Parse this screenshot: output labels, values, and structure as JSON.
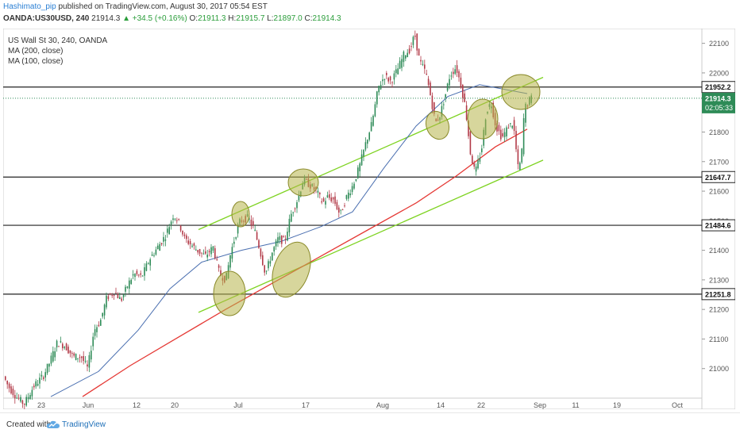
{
  "header": {
    "author": "Hashimato_pip",
    "published": "published on TradingView.com, August 30, 2017 05:54 EST",
    "symbol": "OANDA:US30USD, 240",
    "last": "21914.3",
    "change": "+34.5 (+0.16%)",
    "o_label": "O:",
    "o": "21911.3",
    "h_label": "H:",
    "h": "21915.7",
    "l_label": "L:",
    "l": "21897.0",
    "c_label": "C:",
    "c": "21914.3"
  },
  "legend": {
    "title": "US Wall St 30, 240, OANDA",
    "ma200": "MA (200, close)",
    "ma100": "MA (100, close)"
  },
  "colors": {
    "up": "#2e8b57",
    "down": "#b23a48",
    "ma200": "#e53935",
    "ma100": "#4a6fb0",
    "channel": "#7ed321",
    "ellipse_fill": "#b7b44a",
    "ellipse_stroke": "#8a8a2a",
    "current_badge": "#2e8b57"
  },
  "footer": {
    "created": "Created with",
    "brand": "TradingView"
  },
  "chart_data": {
    "type": "candlestick",
    "title": "US Wall St 30, 240, OANDA",
    "xlabel": "",
    "ylabel": "",
    "ylim": [
      20900,
      22150
    ],
    "x_tick_labels": [
      "23",
      "Jun",
      "12",
      "20",
      "Jul",
      "17",
      "Aug",
      "14",
      "22",
      "Sep",
      "11",
      "19",
      "Oct"
    ],
    "y_tick_labels": [
      21000,
      21100,
      21200,
      21300,
      21400,
      21500,
      21600,
      21700,
      21800,
      21900,
      22000,
      22100
    ],
    "horizontal_levels": [
      {
        "label": "21952.2",
        "value": 21952.2
      },
      {
        "label": "21647.7",
        "value": 21647.7
      },
      {
        "label": "21484.6",
        "value": 21484.6
      },
      {
        "label": "21251.8",
        "value": 21251.8
      }
    ],
    "current_price": {
      "label": "21914.3",
      "value": 21914.3,
      "countdown": "02:05:33"
    },
    "price_path": [
      [
        0,
        20985
      ],
      [
        8,
        20940
      ],
      [
        18,
        20905
      ],
      [
        28,
        20880
      ],
      [
        40,
        20940
      ],
      [
        52,
        20975
      ],
      [
        60,
        21020
      ],
      [
        70,
        21090
      ],
      [
        80,
        21075
      ],
      [
        90,
        21040
      ],
      [
        100,
        21040
      ],
      [
        108,
        21000
      ],
      [
        116,
        21130
      ],
      [
        124,
        21160
      ],
      [
        132,
        21240
      ],
      [
        142,
        21260
      ],
      [
        150,
        21230
      ],
      [
        158,
        21280
      ],
      [
        166,
        21320
      ],
      [
        176,
        21310
      ],
      [
        186,
        21370
      ],
      [
        196,
        21410
      ],
      [
        206,
        21450
      ],
      [
        216,
        21520
      ],
      [
        222,
        21500
      ],
      [
        230,
        21440
      ],
      [
        238,
        21420
      ],
      [
        246,
        21400
      ],
      [
        256,
        21380
      ],
      [
        266,
        21410
      ],
      [
        274,
        21320
      ],
      [
        282,
        21300
      ],
      [
        288,
        21390
      ],
      [
        294,
        21450
      ],
      [
        300,
        21500
      ],
      [
        310,
        21510
      ],
      [
        318,
        21470
      ],
      [
        324,
        21410
      ],
      [
        332,
        21320
      ],
      [
        340,
        21390
      ],
      [
        348,
        21440
      ],
      [
        356,
        21430
      ],
      [
        364,
        21520
      ],
      [
        372,
        21570
      ],
      [
        380,
        21640
      ],
      [
        388,
        21620
      ],
      [
        396,
        21600
      ],
      [
        404,
        21560
      ],
      [
        410,
        21580
      ],
      [
        418,
        21570
      ],
      [
        426,
        21520
      ],
      [
        434,
        21580
      ],
      [
        442,
        21620
      ],
      [
        450,
        21680
      ],
      [
        458,
        21760
      ],
      [
        466,
        21830
      ],
      [
        474,
        21950
      ],
      [
        482,
        21990
      ],
      [
        490,
        21970
      ],
      [
        498,
        22010
      ],
      [
        506,
        22060
      ],
      [
        514,
        22080
      ],
      [
        520,
        22130
      ],
      [
        526,
        22040
      ],
      [
        534,
        22000
      ],
      [
        540,
        21920
      ],
      [
        546,
        21830
      ],
      [
        552,
        21860
      ],
      [
        558,
        21920
      ],
      [
        564,
        21990
      ],
      [
        572,
        22020
      ],
      [
        578,
        21960
      ],
      [
        584,
        21880
      ],
      [
        590,
        21730
      ],
      [
        596,
        21660
      ],
      [
        604,
        21740
      ],
      [
        610,
        21870
      ],
      [
        616,
        21900
      ],
      [
        622,
        21820
      ],
      [
        630,
        21780
      ],
      [
        638,
        21820
      ],
      [
        644,
        21830
      ],
      [
        650,
        21680
      ],
      [
        654,
        21700
      ],
      [
        658,
        21880
      ],
      [
        666,
        21914
      ]
    ],
    "ma200_path": [
      [
        100,
        20905
      ],
      [
        160,
        21010
      ],
      [
        220,
        21105
      ],
      [
        280,
        21200
      ],
      [
        340,
        21290
      ],
      [
        400,
        21380
      ],
      [
        460,
        21470
      ],
      [
        520,
        21560
      ],
      [
        570,
        21650
      ],
      [
        620,
        21750
      ],
      [
        660,
        21810
      ]
    ],
    "ma100_path": [
      [
        60,
        20905
      ],
      [
        120,
        20990
      ],
      [
        170,
        21130
      ],
      [
        210,
        21270
      ],
      [
        250,
        21360
      ],
      [
        300,
        21400
      ],
      [
        350,
        21430
      ],
      [
        400,
        21480
      ],
      [
        440,
        21530
      ],
      [
        480,
        21680
      ],
      [
        520,
        21820
      ],
      [
        560,
        21920
      ],
      [
        600,
        21960
      ],
      [
        640,
        21940
      ],
      [
        660,
        21930
      ]
    ],
    "channel_lines": [
      {
        "from": [
          246,
          21470
        ],
        "to": [
          680,
          21985
        ]
      },
      {
        "from": [
          246,
          21190
        ],
        "to": [
          680,
          21705
        ]
      }
    ],
    "annotations": [
      "ellipse",
      "ellipse",
      "ellipse",
      "ellipse",
      "ellipse",
      "ellipse",
      "ellipse",
      "ellipse"
    ]
  }
}
